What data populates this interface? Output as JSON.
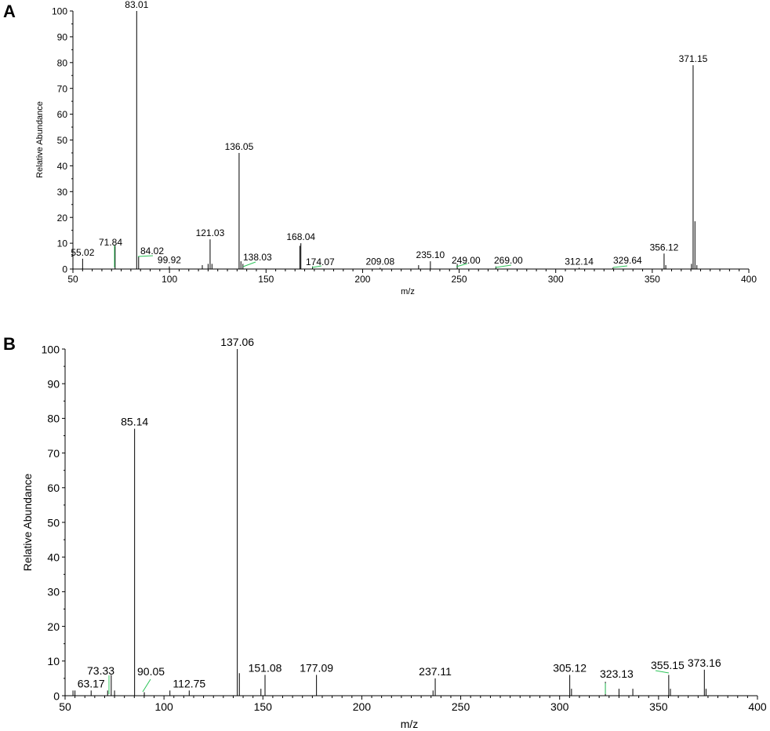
{
  "chart_data": [
    {
      "panel": "A",
      "type": "bar",
      "xlabel": "m/z",
      "ylabel": "Relative Abundance",
      "xlim": [
        50,
        400
      ],
      "ylim": [
        0,
        100
      ],
      "xticks": [
        50,
        100,
        150,
        200,
        250,
        300,
        350,
        400
      ],
      "yticks": [
        0,
        10,
        20,
        30,
        40,
        50,
        60,
        70,
        80,
        90,
        100
      ],
      "peaks": [
        {
          "mz": 55.02,
          "y": 4,
          "label": "55.02"
        },
        {
          "mz": 71.84,
          "y": 9,
          "label": "71.84"
        },
        {
          "mz": 83.01,
          "y": 100,
          "label": "83.01"
        },
        {
          "mz": 84.02,
          "y": 5,
          "label": "84.02"
        },
        {
          "mz": 99.92,
          "y": 1,
          "label": "99.92"
        },
        {
          "mz": 121.03,
          "y": 11.5,
          "label": "121.03"
        },
        {
          "mz": 136.05,
          "y": 45,
          "label": "136.05"
        },
        {
          "mz": 138.03,
          "y": 2,
          "label": "138.03"
        },
        {
          "mz": 168.04,
          "y": 10,
          "label": "168.04"
        },
        {
          "mz": 174.07,
          "y": 1,
          "label": "174.07"
        },
        {
          "mz": 209.08,
          "y": 0.5,
          "label": "209.08"
        },
        {
          "mz": 235.1,
          "y": 3,
          "label": "235.10"
        },
        {
          "mz": 249.0,
          "y": 2,
          "label": "249.00"
        },
        {
          "mz": 269.0,
          "y": 1,
          "label": "269.00"
        },
        {
          "mz": 312.14,
          "y": 0.5,
          "label": "312.14"
        },
        {
          "mz": 329.64,
          "y": 0.5,
          "label": "329.64"
        },
        {
          "mz": 356.12,
          "y": 6,
          "label": "356.12"
        },
        {
          "mz": 371.15,
          "y": 79,
          "label": "371.15"
        },
        {
          "mz": 372.1,
          "y": 18.5,
          "label": ""
        },
        {
          "mz": 370.3,
          "y": 2,
          "label": ""
        },
        {
          "mz": 373.1,
          "y": 1.5,
          "label": ""
        },
        {
          "mz": 120.0,
          "y": 2,
          "label": ""
        },
        {
          "mz": 117.0,
          "y": 1.5,
          "label": ""
        },
        {
          "mz": 122.0,
          "y": 2,
          "label": ""
        },
        {
          "mz": 137.0,
          "y": 3,
          "label": ""
        },
        {
          "mz": 167.5,
          "y": 9,
          "label": ""
        },
        {
          "mz": 357.0,
          "y": 1.5,
          "label": ""
        },
        {
          "mz": 229.0,
          "y": 1.5,
          "label": ""
        }
      ]
    },
    {
      "panel": "B",
      "type": "bar",
      "xlabel": "m/z",
      "ylabel": "Relative Abundance",
      "xlim": [
        50,
        400
      ],
      "ylim": [
        0,
        100
      ],
      "xticks": [
        50,
        100,
        150,
        200,
        250,
        300,
        350,
        400
      ],
      "yticks": [
        0,
        10,
        20,
        30,
        40,
        50,
        60,
        70,
        80,
        90,
        100
      ],
      "peaks": [
        {
          "mz": 54.0,
          "y": 1.5,
          "label": ""
        },
        {
          "mz": 55.0,
          "y": 1.5,
          "label": ""
        },
        {
          "mz": 63.17,
          "y": 1.5,
          "label": "63.17"
        },
        {
          "mz": 73.33,
          "y": 6,
          "label": "73.33"
        },
        {
          "mz": 71.5,
          "y": 1.5,
          "label": ""
        },
        {
          "mz": 75.0,
          "y": 1.5,
          "label": ""
        },
        {
          "mz": 85.14,
          "y": 77,
          "label": "85.14"
        },
        {
          "mz": 90.05,
          "y": 1,
          "label": "90.05"
        },
        {
          "mz": 103.0,
          "y": 1.5,
          "label": ""
        },
        {
          "mz": 112.75,
          "y": 1.5,
          "label": "112.75"
        },
        {
          "mz": 137.06,
          "y": 100,
          "label": "137.06"
        },
        {
          "mz": 138.1,
          "y": 6.5,
          "label": ""
        },
        {
          "mz": 149.0,
          "y": 2,
          "label": ""
        },
        {
          "mz": 151.08,
          "y": 6,
          "label": "151.08"
        },
        {
          "mz": 177.09,
          "y": 6,
          "label": "177.09"
        },
        {
          "mz": 236.0,
          "y": 1.5,
          "label": ""
        },
        {
          "mz": 237.11,
          "y": 5,
          "label": "237.11"
        },
        {
          "mz": 305.12,
          "y": 6,
          "label": "305.12"
        },
        {
          "mz": 306.0,
          "y": 2,
          "label": ""
        },
        {
          "mz": 323.13,
          "y": 4,
          "label": "323.13"
        },
        {
          "mz": 330.0,
          "y": 2,
          "label": ""
        },
        {
          "mz": 337.0,
          "y": 2,
          "label": ""
        },
        {
          "mz": 355.15,
          "y": 6,
          "label": "355.15"
        },
        {
          "mz": 356.0,
          "y": 2,
          "label": ""
        },
        {
          "mz": 373.16,
          "y": 7.5,
          "label": "373.16"
        },
        {
          "mz": 374.0,
          "y": 2,
          "label": ""
        }
      ]
    }
  ]
}
